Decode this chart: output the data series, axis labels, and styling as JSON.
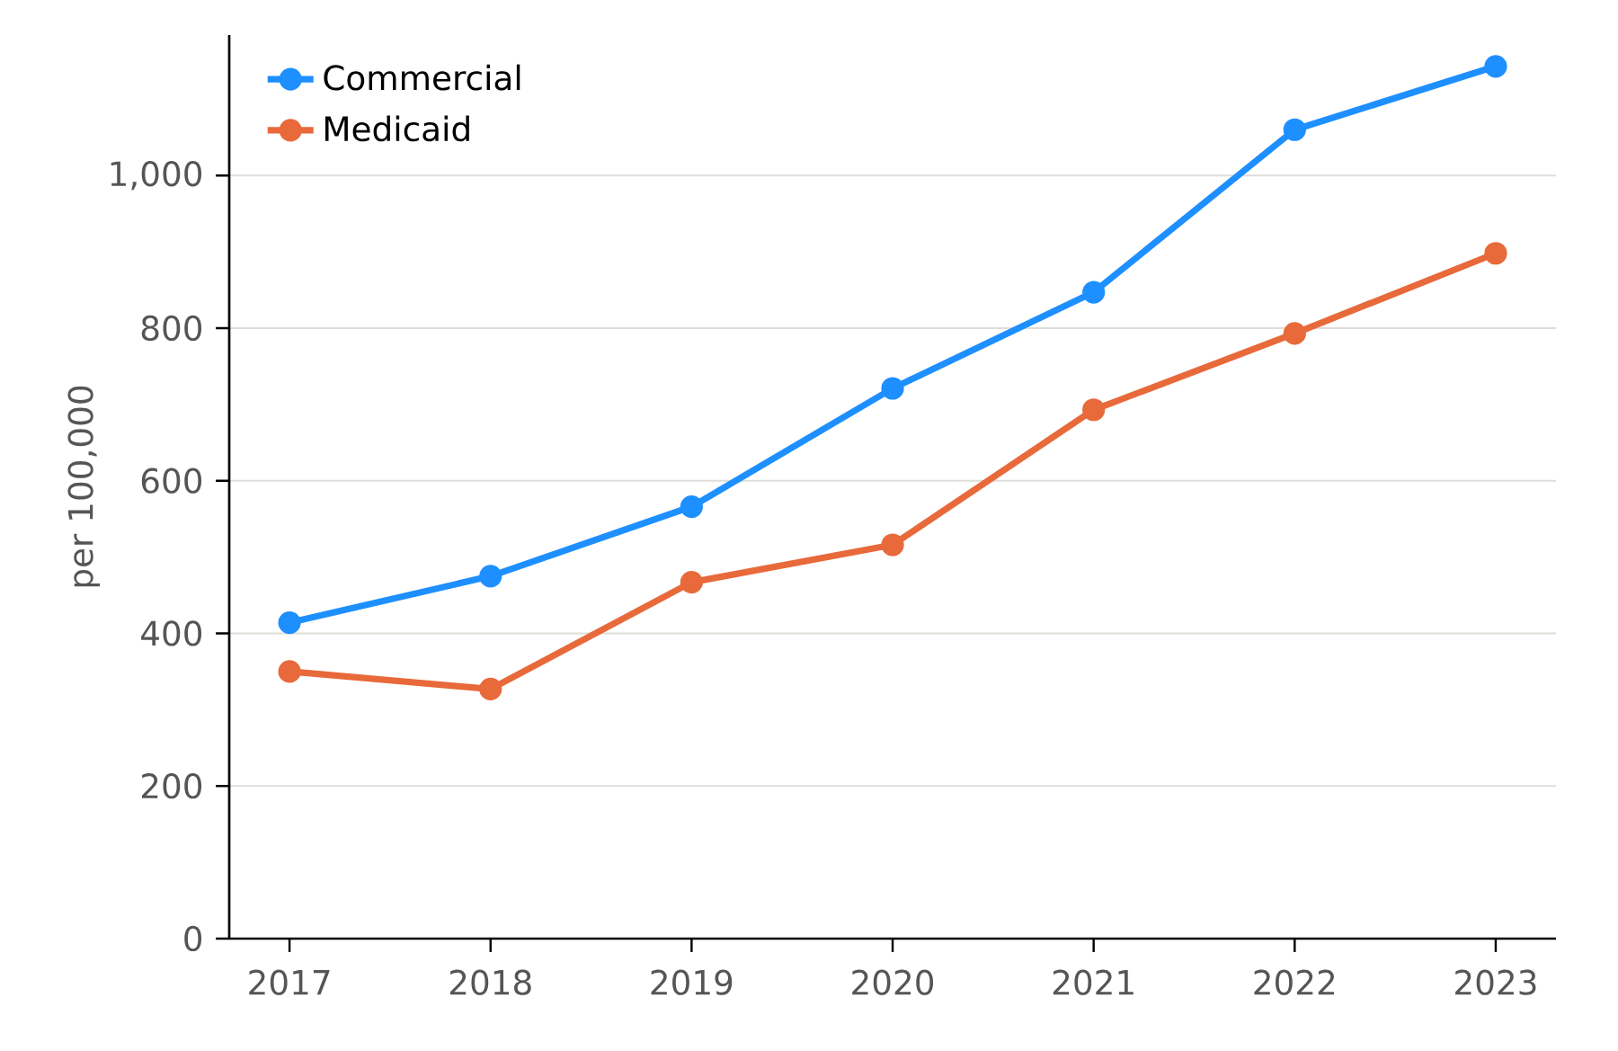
{
  "chart_data": {
    "type": "line",
    "ylabel": "per 100,000",
    "x": [
      2017,
      2018,
      2019,
      2020,
      2021,
      2022,
      2023
    ],
    "xlim": [
      2016.7,
      2023.3
    ],
    "xticks": [
      2017,
      2018,
      2019,
      2020,
      2021,
      2022,
      2023
    ],
    "ylim": [
      0,
      1184
    ],
    "yticks": [
      0,
      200,
      400,
      600,
      800,
      {
        "value": 1000,
        "label": "1,000"
      }
    ],
    "grid": "y",
    "legend": "top left",
    "marker": "circle",
    "line_style": "solid",
    "series": [
      {
        "name": "Commercial",
        "color": "#1e8fff",
        "values": [
          414,
          475,
          566,
          721,
          847,
          1060,
          1143
        ]
      },
      {
        "name": "Medicaid",
        "color": "#e8693a",
        "values": [
          350,
          327,
          467,
          516,
          693,
          793,
          898
        ]
      }
    ]
  }
}
